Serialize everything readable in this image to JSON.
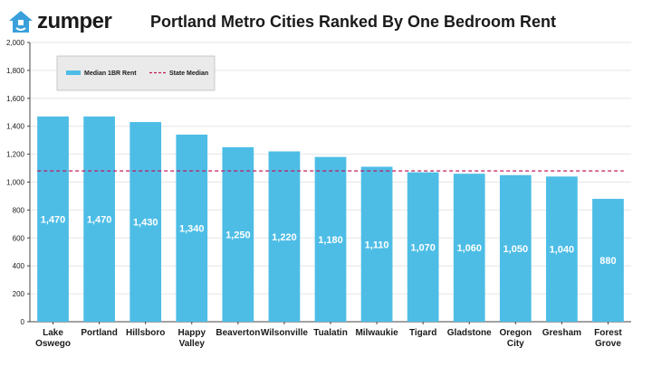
{
  "brand": {
    "name": "zumper",
    "logo_icon": "house-icon",
    "logo_color": "#3aa0dc"
  },
  "colors": {
    "bar": "#4dbde6",
    "median_line": "#c2185b",
    "grid": "#e6e6e6",
    "legend_bg": "#eaeaea"
  },
  "chart_data": {
    "type": "bar",
    "title": "Portland Metro Cities Ranked By One Bedroom Rent",
    "xlabel": "",
    "ylabel": "",
    "ylim": [
      0,
      2000
    ],
    "yticks": [
      "0",
      "200",
      "400",
      "600",
      "800",
      "1,000",
      "1,200",
      "1,400",
      "1,600",
      "1,800",
      "2,000"
    ],
    "grid": true,
    "legend_placement": "top-left",
    "categories": [
      [
        "Lake",
        "Oswego"
      ],
      [
        "Portland"
      ],
      [
        "Hillsboro"
      ],
      [
        "Happy",
        "Valley"
      ],
      [
        "Beaverton"
      ],
      [
        "Wilsonville"
      ],
      [
        "Tualatin"
      ],
      [
        "Milwaukie"
      ],
      [
        "Tigard"
      ],
      [
        "Gladstone"
      ],
      [
        "Oregon",
        "City"
      ],
      [
        "Gresham"
      ],
      [
        "Forest",
        "Grove"
      ]
    ],
    "series": [
      {
        "name": "Median 1BR Rent",
        "values": [
          1470,
          1470,
          1430,
          1340,
          1250,
          1220,
          1180,
          1110,
          1070,
          1060,
          1050,
          1040,
          880
        ],
        "labels": [
          "1,470",
          "1,470",
          "1,430",
          "1,340",
          "1,250",
          "1,220",
          "1,180",
          "1,110",
          "1,070",
          "1,060",
          "1,050",
          "1,040",
          "880"
        ]
      }
    ],
    "reference_line": {
      "name": "State Median",
      "value": 1080
    }
  }
}
